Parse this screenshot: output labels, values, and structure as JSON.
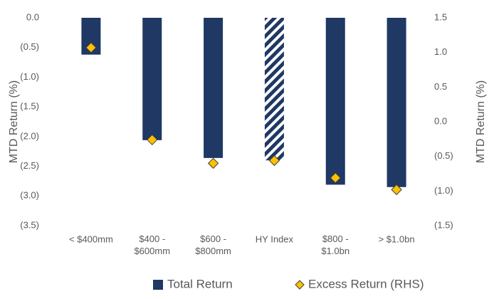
{
  "chart_data": {
    "type": "bar",
    "categories": [
      "< $400mm",
      "$400 - $600mm",
      "$600 - $800mm",
      "HY Index",
      "$800 - $1.0bn",
      "> $1.0bn"
    ],
    "series": [
      {
        "name": "Total Return",
        "color": "#1f3864",
        "values": [
          -0.62,
          -2.06,
          -2.36,
          -2.4,
          -2.81,
          -2.85
        ],
        "hatched": [
          false,
          false,
          false,
          true,
          false,
          false
        ]
      },
      {
        "name": "Excess Return (RHS)",
        "color": "#ffc000",
        "axis": "y2",
        "type": "scatter",
        "values": [
          1.07,
          -0.26,
          -0.6,
          -0.56,
          -0.81,
          -0.98
        ]
      }
    ],
    "ylabel": "MTD Return (%)",
    "y2label": "MTD Return (%)",
    "ylim": [
      -3.5,
      0
    ],
    "yticks": [
      {
        "value": 0,
        "label": "0.0"
      },
      {
        "value": -0.5,
        "label": "(0.5)"
      },
      {
        "value": -1,
        "label": "(1.0)"
      },
      {
        "value": -1.5,
        "label": "(1.5)"
      },
      {
        "value": -2,
        "label": "(2.0)"
      },
      {
        "value": -2.5,
        "label": "(2.5)"
      },
      {
        "value": -3,
        "label": "(3.0)"
      },
      {
        "value": -3.5,
        "label": "(3.5)"
      }
    ],
    "y2lim": [
      -1.5,
      1.5
    ],
    "y2ticks": [
      {
        "value": 1.5,
        "label": "1.5"
      },
      {
        "value": 1,
        "label": "1.0"
      },
      {
        "value": 0.5,
        "label": "0.5"
      },
      {
        "value": 0,
        "label": "0.0"
      },
      {
        "value": -0.5,
        "label": "(0.5)"
      },
      {
        "value": -1,
        "label": "(1.0)"
      },
      {
        "value": -1.5,
        "label": "(1.5)"
      }
    ],
    "legend": "bottom",
    "grid": false
  }
}
